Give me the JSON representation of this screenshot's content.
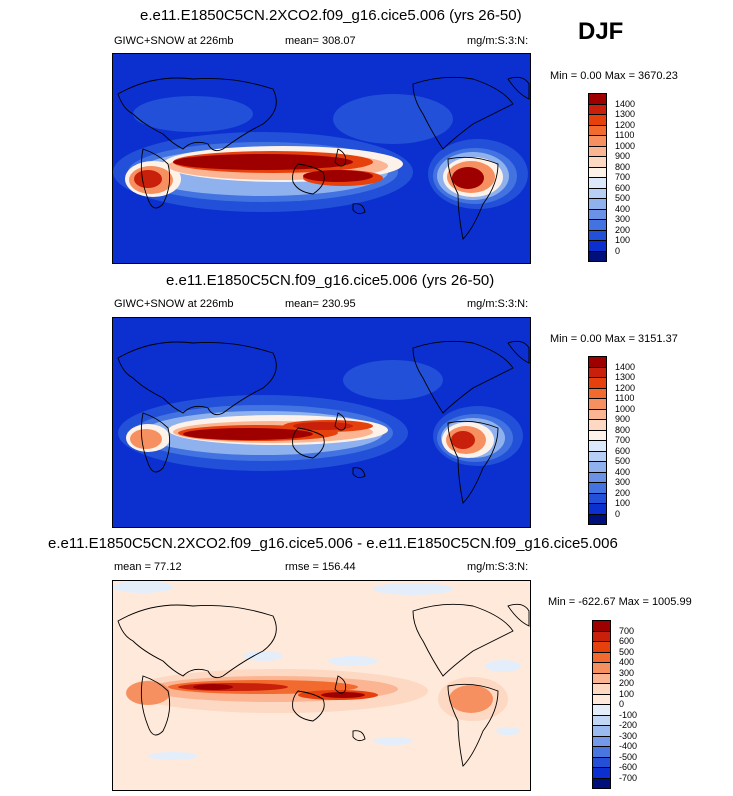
{
  "season": "DJF",
  "panels": [
    {
      "title": "e.e11.E1850C5CN.2XCO2.f09_g16.cice5.006 (yrs 26-50)",
      "left_label": "GIWC+SNOW at 226mb",
      "center_label": "mean= 308.07",
      "right_label": "mg/m:S:3:N:",
      "minmax": "Min =   0.00 Max = 3670.23",
      "colorbar_labels": [
        "1400",
        "1300",
        "1200",
        "1100",
        "1000",
        "900",
        "800",
        "700",
        "600",
        "500",
        "400",
        "300",
        "200",
        "100",
        "0"
      ],
      "colorbar_colors": [
        "#9e0000",
        "#c8200a",
        "#e6400c",
        "#f26a2e",
        "#f79060",
        "#fbb593",
        "#fdd8c2",
        "#fdf2ea",
        "#dce9fb",
        "#b8cff5",
        "#8fb2ef",
        "#6a93e8",
        "#4273e0",
        "#2250d8",
        "#0c2fcf",
        "#00107a"
      ]
    },
    {
      "title": "e.e11.E1850C5CN.f09_g16.cice5.006 (yrs 26-50)",
      "left_label": "GIWC+SNOW at 226mb",
      "center_label": "mean= 230.95",
      "right_label": "mg/m:S:3:N:",
      "minmax": "Min =   0.00 Max = 3151.37",
      "colorbar_labels": [
        "1400",
        "1300",
        "1200",
        "1100",
        "1000",
        "900",
        "800",
        "700",
        "600",
        "500",
        "400",
        "300",
        "200",
        "100",
        "0"
      ],
      "colorbar_colors": [
        "#9e0000",
        "#c8200a",
        "#e6400c",
        "#f26a2e",
        "#f79060",
        "#fbb593",
        "#fdd8c2",
        "#fdf2ea",
        "#dce9fb",
        "#b8cff5",
        "#8fb2ef",
        "#6a93e8",
        "#4273e0",
        "#2250d8",
        "#0c2fcf",
        "#00107a"
      ]
    },
    {
      "title": "e.e11.E1850C5CN.2XCO2.f09_g16.cice5.006 - e.e11.E1850C5CN.f09_g16.cice5.006",
      "left_label": "mean =  77.12",
      "center_label": "rmse = 156.44",
      "right_label": "mg/m:S:3:N:",
      "minmax": "Min = -622.67 Max = 1005.99",
      "colorbar_labels": [
        "700",
        "600",
        "500",
        "400",
        "300",
        "200",
        "100",
        "0",
        "-100",
        "-200",
        "-300",
        "-400",
        "-500",
        "-600",
        "-700"
      ],
      "colorbar_colors": [
        "#9e0000",
        "#c8200a",
        "#e6400c",
        "#f26a2e",
        "#f79060",
        "#fbb593",
        "#fdd8c2",
        "#fee9da",
        "#e4eefb",
        "#c2d6f5",
        "#9bbbf0",
        "#7399e8",
        "#4a76df",
        "#2350d6",
        "#0c2fcf",
        "#00107a"
      ]
    }
  ],
  "chart_data": [
    {
      "type": "heatmap",
      "title": "e.e11.E1850C5CN.2XCO2.f09_g16.cice5.006 (yrs 26-50)",
      "variable": "GIWC+SNOW at 226mb",
      "units": "mg/m:S:3:N:",
      "mean": 308.07,
      "min": 0.0,
      "max": 3670.23,
      "levels": [
        0,
        100,
        200,
        300,
        400,
        500,
        600,
        700,
        800,
        900,
        1000,
        1100,
        1200,
        1300,
        1400
      ],
      "features": [
        {
          "lon": 105,
          "lat": 5,
          "value": 1400
        },
        {
          "lon": 160,
          "lat": 6,
          "value": 1300
        },
        {
          "lon": 300,
          "lat": -8,
          "value": 1100
        },
        {
          "lon": 20,
          "lat": -10,
          "value": 1000
        },
        {
          "lon": 210,
          "lat": 6,
          "value": 600
        }
      ]
    },
    {
      "type": "heatmap",
      "title": "e.e11.E1850C5CN.f09_g16.cice5.006 (yrs 26-50)",
      "variable": "GIWC+SNOW at 226mb",
      "units": "mg/m:S:3:N:",
      "mean": 230.95,
      "min": 0.0,
      "max": 3151.37,
      "levels": [
        0,
        100,
        200,
        300,
        400,
        500,
        600,
        700,
        800,
        900,
        1000,
        1100,
        1200,
        1300,
        1400
      ],
      "features": [
        {
          "lon": 110,
          "lat": -2,
          "value": 1300
        },
        {
          "lon": 165,
          "lat": 6,
          "value": 1100
        },
        {
          "lon": 300,
          "lat": -10,
          "value": 1000
        },
        {
          "lon": 22,
          "lat": -12,
          "value": 900
        },
        {
          "lon": 215,
          "lat": 7,
          "value": 500
        }
      ]
    },
    {
      "type": "heatmap",
      "title": "e.e11.E1850C5CN.2XCO2.f09_g16.cice5.006 - e.e11.E1850C5CN.f09_g16.cice5.006",
      "units": "mg/m:S:3:N:",
      "mean": 77.12,
      "rmse": 156.44,
      "min": -622.67,
      "max": 1005.99,
      "levels": [
        -700,
        -600,
        -500,
        -400,
        -300,
        -200,
        -100,
        0,
        100,
        200,
        300,
        400,
        500,
        600,
        700
      ],
      "features": [
        {
          "lon": 110,
          "lat": 2,
          "value": 700
        },
        {
          "lon": 170,
          "lat": 4,
          "value": 500
        },
        {
          "lon": 300,
          "lat": -10,
          "value": 400
        },
        {
          "lon": 20,
          "lat": -8,
          "value": 300
        },
        {
          "lon": 240,
          "lat": 30,
          "value": -100
        }
      ]
    }
  ]
}
